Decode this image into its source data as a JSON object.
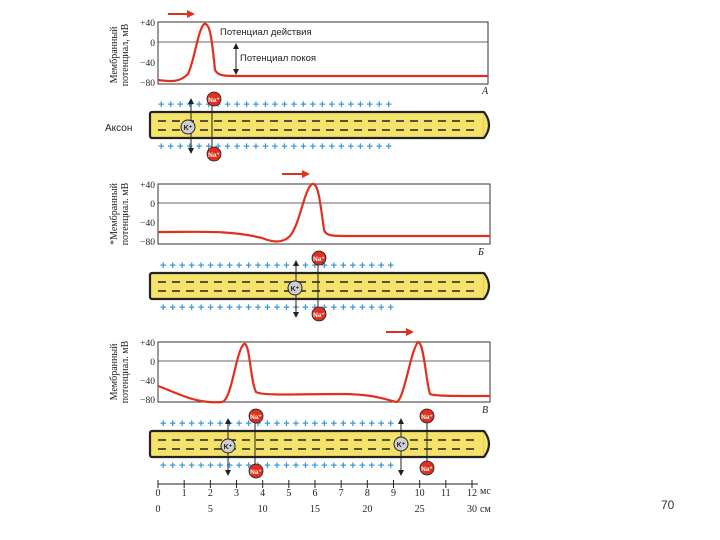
{
  "ylabels": {
    "a": [
      "Мембранный",
      "потенциал, мВ"
    ],
    "b": [
      "*Мембранный",
      "потенциал. мВ"
    ],
    "c": [
      "Мембранный",
      "потенциал. мВ"
    ]
  },
  "yticks": [
    "+40",
    "0",
    "−40",
    "−80"
  ],
  "annotations": {
    "action_potential": "Потенциал действия",
    "resting_potential": "Потенциал покоя"
  },
  "panel_labels": [
    "А",
    "Б",
    "В"
  ],
  "axon_label": "Аксон",
  "ions": {
    "na": "Na⁺",
    "k": "K⁺"
  },
  "scale": {
    "ms_ticks": [
      "0",
      "1",
      "2",
      "3",
      "4",
      "5",
      "6",
      "7",
      "8",
      "9",
      "10",
      "11",
      "12"
    ],
    "ms_unit": "мс",
    "cm_ticks": [
      "0",
      "5",
      "10",
      "15",
      "20",
      "25",
      "30"
    ],
    "cm_unit": "см"
  },
  "page_number": "70",
  "colors": {
    "trace": "#e0301e",
    "axon_fill": "#f5e26a",
    "plus": "#3a9ad9",
    "ion_na": "#e0301e",
    "ion_k": "#cfcfcf"
  }
}
